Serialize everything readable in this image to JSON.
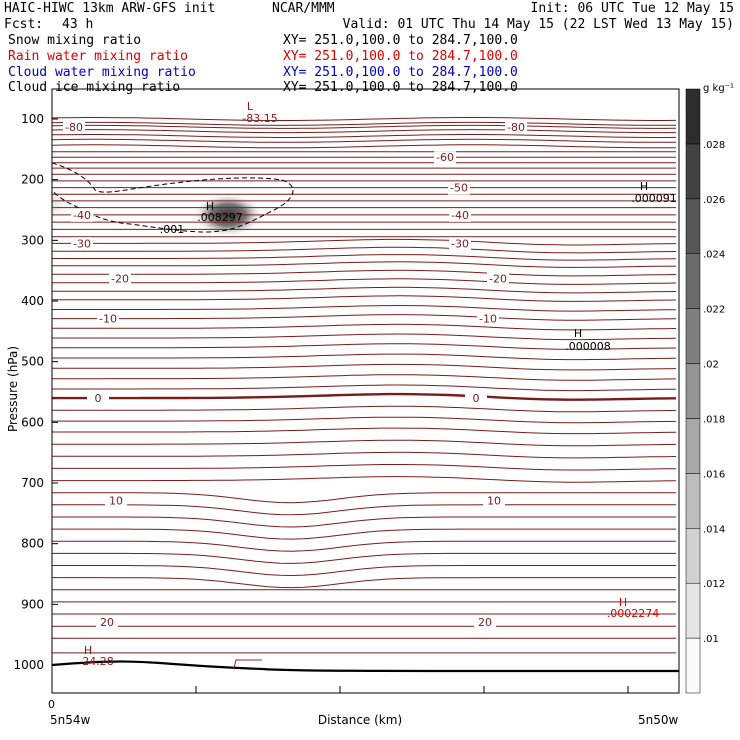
{
  "header": {
    "title_left": "HAIC-HIWC 13km ARW-GFS init",
    "institution": "NCAR/MMM",
    "init_text": "Init: 06 UTC Tue 12 May 15",
    "fcst_label": "Fcst:",
    "fcst_value": "43 h",
    "valid_text": "Valid: 01 UTC Thu 14 May 15 (22 LST Wed 13 May 15)"
  },
  "fields": [
    {
      "name": "Snow mixing ratio",
      "xy": "XY= 251.0,100.0 to 284.7,100.0",
      "color": "#000000"
    },
    {
      "name": "Rain water mixing ratio",
      "xy": "XY= 251.0,100.0 to 284.7,100.0",
      "color": "#e00000"
    },
    {
      "name": "Cloud water mixing ratio",
      "xy": "XY= 251.0,100.0 to 284.7,100.0",
      "color": "#0000c8"
    },
    {
      "name": "Cloud ice mixing ratio",
      "xy": "XY= 251.0,100.0 to 284.7,100.0",
      "color": "#000000"
    }
  ],
  "colorbar": {
    "unit": "g kg⁻¹",
    "labels": [
      ".01",
      ".012",
      ".014",
      ".016",
      ".018",
      ".02",
      ".022",
      ".024",
      ".026",
      ".028"
    ]
  },
  "chart_data": {
    "type": "contour",
    "ylabel": "Pressure (hPa)",
    "xlabel": "Distance (km)",
    "x_start_label": "5n54w",
    "x_end_label": "5n50w",
    "x_tick_labels": [
      "0"
    ],
    "y_axis": {
      "scale": "linear",
      "inverted": true,
      "range": [
        1050,
        60
      ],
      "ticks": [
        100,
        200,
        300,
        400,
        500,
        600,
        700,
        800,
        900,
        1000
      ]
    },
    "temperature_contours": [
      {
        "label": "-80",
        "p": 113
      },
      {
        "label": "-60",
        "p": 163
      },
      {
        "label": "-50",
        "p": 213
      },
      {
        "label": "-40",
        "p": 258
      },
      {
        "label": "-30",
        "p": 305
      },
      {
        "label": "-20",
        "p": 363
      },
      {
        "label": "-10",
        "p": 429
      },
      {
        "label": "0",
        "p": 560
      },
      {
        "label": "10",
        "p": 729
      },
      {
        "label": "20",
        "p": 929
      }
    ],
    "extrema_labels": [
      {
        "letter": "L",
        "value": "-83.15",
        "color": "#8b1a1a"
      },
      {
        "letter": "H",
        "value": ".008297",
        "color": "#000000"
      },
      {
        "letter": "H",
        "value": ".000091",
        "color": "#000000"
      },
      {
        "letter": "H",
        "value": ".000008",
        "color": "#000000"
      },
      {
        "letter": "H",
        "value": ".0002274",
        "color": "#e00000"
      },
      {
        "letter": "H",
        "value": "24.28",
        "color": "#8b1a1a"
      }
    ],
    "cloud_ice_contour_label": ".001"
  }
}
